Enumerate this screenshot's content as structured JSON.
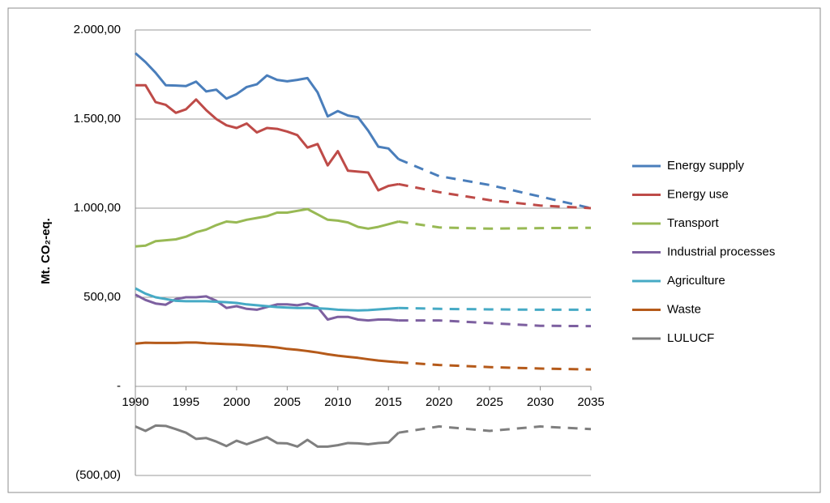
{
  "chart_data": {
    "type": "line",
    "y_label": "Mt. CO₂-eq.",
    "x": [
      1990,
      1991,
      1992,
      1993,
      1994,
      1995,
      1996,
      1997,
      1998,
      1999,
      2000,
      2001,
      2002,
      2003,
      2004,
      2005,
      2006,
      2007,
      2008,
      2009,
      2010,
      2011,
      2012,
      2013,
      2014,
      2015,
      2016,
      2020,
      2025,
      2030,
      2035
    ],
    "projection_from": 2016,
    "xlim": [
      1990,
      2035
    ],
    "xticks": [
      1990,
      1995,
      2000,
      2005,
      2010,
      2015,
      2020,
      2025,
      2030,
      2035
    ],
    "ylim": [
      -500,
      2000
    ],
    "yticks": [
      {
        "value": -500,
        "label": "(500,00)"
      },
      {
        "value": 0,
        "label": "-"
      },
      {
        "value": 500,
        "label": "500,00"
      },
      {
        "value": 1000,
        "label": "1.000,00"
      },
      {
        "value": 1500,
        "label": "1.500,00"
      },
      {
        "value": 2000,
        "label": "2.000,00"
      }
    ],
    "grid": true,
    "legend": "right",
    "series": [
      {
        "name": "Energy supply",
        "color": "#4a7ebb",
        "values": [
          1870,
          1820,
          1760,
          1690,
          1688,
          1685,
          1710,
          1655,
          1665,
          1615,
          1640,
          1680,
          1695,
          1745,
          1720,
          1712,
          1720,
          1730,
          1650,
          1515,
          1545,
          1520,
          1510,
          1435,
          1345,
          1335,
          1275,
          1180,
          1130,
          1065,
          1000
        ]
      },
      {
        "name": "Energy use",
        "color": "#be4b48",
        "values": [
          1690,
          1690,
          1595,
          1580,
          1535,
          1555,
          1610,
          1550,
          1500,
          1465,
          1450,
          1475,
          1425,
          1450,
          1445,
          1430,
          1410,
          1340,
          1360,
          1240,
          1320,
          1210,
          1205,
          1200,
          1100,
          1125,
          1135,
          1090,
          1045,
          1015,
          1000
        ]
      },
      {
        "name": "Transport",
        "color": "#98b954",
        "values": [
          785,
          790,
          815,
          820,
          825,
          840,
          865,
          880,
          905,
          925,
          920,
          935,
          945,
          955,
          975,
          975,
          985,
          995,
          965,
          935,
          930,
          920,
          895,
          885,
          895,
          910,
          925,
          892,
          885,
          888,
          890
        ]
      },
      {
        "name": "Industrial processes",
        "color": "#7d60a0",
        "values": [
          515,
          485,
          465,
          458,
          490,
          500,
          500,
          505,
          480,
          440,
          450,
          435,
          430,
          445,
          460,
          460,
          455,
          465,
          445,
          375,
          390,
          390,
          375,
          370,
          375,
          375,
          370,
          370,
          355,
          340,
          338
        ]
      },
      {
        "name": "Agriculture",
        "color": "#46aac5",
        "values": [
          550,
          520,
          500,
          490,
          480,
          478,
          478,
          478,
          475,
          472,
          468,
          460,
          455,
          450,
          445,
          442,
          440,
          440,
          438,
          435,
          430,
          428,
          426,
          428,
          432,
          436,
          440,
          435,
          432,
          430,
          430
        ]
      },
      {
        "name": "Waste",
        "color": "#b55a1a",
        "values": [
          240,
          245,
          244,
          244,
          244,
          246,
          246,
          242,
          240,
          237,
          235,
          232,
          228,
          224,
          218,
          210,
          205,
          198,
          190,
          180,
          172,
          166,
          160,
          152,
          145,
          140,
          135,
          120,
          108,
          100,
          95
        ]
      },
      {
        "name": "LULUCF",
        "color": "#7f7f7f",
        "values": [
          -225,
          -250,
          -220,
          -222,
          -240,
          -260,
          -295,
          -290,
          -310,
          -335,
          -305,
          -325,
          -305,
          -285,
          -318,
          -320,
          -338,
          -300,
          -338,
          -338,
          -330,
          -318,
          -320,
          -325,
          -318,
          -315,
          -260,
          -225,
          -250,
          -225,
          -240
        ]
      }
    ]
  }
}
